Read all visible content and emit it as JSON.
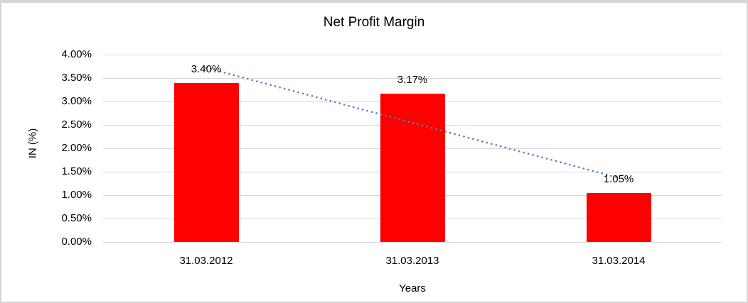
{
  "chart_data": {
    "type": "bar",
    "title": "Net Profit Margin",
    "categories": [
      "31.03.2012",
      "31.03.2013",
      "31.03.2014"
    ],
    "values": [
      3.4,
      3.17,
      1.05
    ],
    "data_labels": [
      "3.40%",
      "3.17%",
      "1.05%"
    ],
    "xlabel": "Years",
    "ylabel": "IN (%)",
    "ylim": [
      0,
      4
    ],
    "yticks": [
      "0.00%",
      "0.50%",
      "1.00%",
      "1.50%",
      "2.00%",
      "2.50%",
      "3.00%",
      "3.50%",
      "4.00%"
    ],
    "grid": true,
    "legend": "none",
    "bar_color": "#FF0000",
    "trendline": {
      "type": "linear",
      "style": "dotted",
      "color": "#4F81BD",
      "start_value": 3.72,
      "end_value": 1.37
    }
  },
  "colors": {
    "background": "#FFFFFF",
    "gridline": "#D9D9D9",
    "frame_border": "#D6D6D6",
    "text": "#000000"
  }
}
